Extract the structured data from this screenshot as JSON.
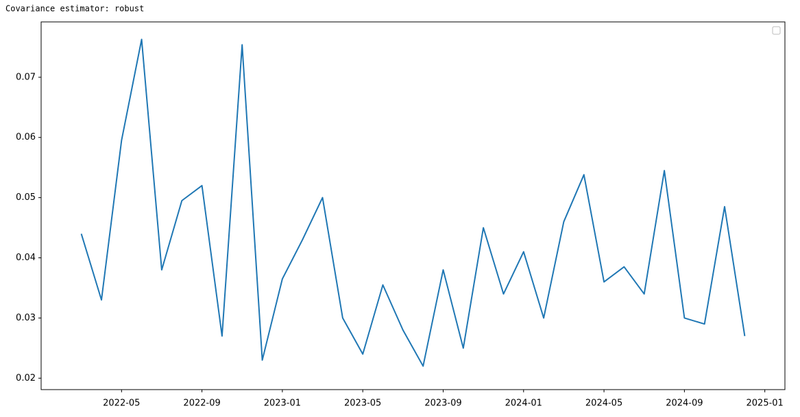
{
  "chart_data": {
    "type": "line",
    "title": "Covariance estimator: robust",
    "x": [
      "2022-03",
      "2022-04",
      "2022-05",
      "2022-06",
      "2022-07",
      "2022-08",
      "2022-09",
      "2022-10",
      "2022-11",
      "2022-12",
      "2023-01",
      "2023-02",
      "2023-03",
      "2023-04",
      "2023-05",
      "2023-06",
      "2023-07",
      "2023-08",
      "2023-09",
      "2023-10",
      "2023-11",
      "2023-12",
      "2024-01",
      "2024-02",
      "2024-03",
      "2024-04",
      "2024-05",
      "2024-06",
      "2024-07",
      "2024-08",
      "2024-09",
      "2024-10",
      "2024-11",
      "2024-12"
    ],
    "series": [
      {
        "color": "#1f77b4",
        "values": [
          0.044,
          0.033,
          0.0595,
          0.0763,
          0.038,
          0.0495,
          0.052,
          0.027,
          0.0754,
          0.023,
          0.0365,
          0.043,
          0.05,
          0.03,
          0.024,
          0.0355,
          0.028,
          0.022,
          0.038,
          0.025,
          0.045,
          0.034,
          0.041,
          0.03,
          0.046,
          0.0538,
          0.036,
          0.0385,
          0.034,
          0.0545,
          0.03,
          0.029,
          0.0485,
          0.027
        ]
      }
    ],
    "xlim": [
      "2022-01",
      "2025-02"
    ],
    "xticks": [
      "2022-05",
      "2022-09",
      "2023-01",
      "2023-05",
      "2023-09",
      "2024-01",
      "2024-05",
      "2024-09",
      "2025-01"
    ],
    "ylim": [
      0.0181,
      0.0792
    ],
    "yticks": [
      0.02,
      0.03,
      0.04,
      0.05,
      0.06,
      0.07
    ],
    "grid": false
  }
}
